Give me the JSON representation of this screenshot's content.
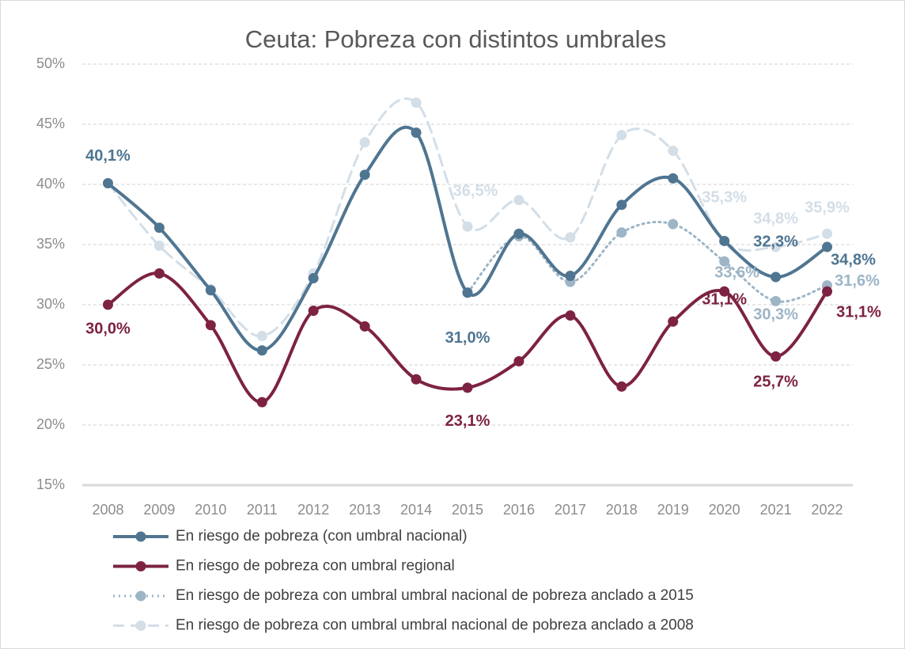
{
  "chart_data": {
    "type": "line",
    "title": "Ceuta: Pobreza con distintos umbrales",
    "categories": [
      "2008",
      "2009",
      "2010",
      "2011",
      "2012",
      "2013",
      "2014",
      "2015",
      "2016",
      "2017",
      "2018",
      "2019",
      "2020",
      "2021",
      "2022"
    ],
    "series": [
      {
        "name": "En riesgo de pobreza (con umbral nacional)",
        "color": "#4f7591",
        "line_style": "solid",
        "values": [
          40.1,
          36.4,
          31.2,
          26.2,
          32.2,
          40.8,
          44.3,
          31.0,
          35.9,
          32.4,
          38.3,
          40.5,
          35.3,
          32.3,
          34.8
        ],
        "value_labels": [
          "40,1%",
          null,
          null,
          null,
          null,
          null,
          null,
          "31,0%",
          null,
          null,
          null,
          null,
          null,
          "32,3%",
          "34,8%"
        ]
      },
      {
        "name": "En riesgo de pobreza con umbral regional",
        "color": "#7d2243",
        "line_style": "solid",
        "values": [
          30.0,
          32.6,
          28.3,
          21.9,
          29.5,
          28.2,
          23.8,
          23.1,
          25.3,
          29.1,
          23.2,
          28.6,
          31.1,
          25.7,
          31.1
        ],
        "value_labels": [
          "30,0%",
          null,
          null,
          null,
          null,
          null,
          null,
          "23,1%",
          null,
          null,
          null,
          null,
          "31,1%",
          "25,7%",
          "31,1%"
        ]
      },
      {
        "name": "En riesgo de pobreza con umbral umbral nacional de pobreza anclado a 2015",
        "color": "#9db5c6",
        "line_style": "dotted",
        "values": [
          null,
          null,
          null,
          null,
          null,
          null,
          null,
          31.0,
          35.7,
          31.9,
          36.0,
          36.7,
          33.6,
          30.3,
          31.6
        ],
        "value_labels": [
          null,
          null,
          null,
          null,
          null,
          null,
          null,
          null,
          null,
          null,
          null,
          null,
          "33,6%",
          "30,3%",
          "31,6%"
        ]
      },
      {
        "name": "En riesgo de pobreza con umbral umbral nacional de pobreza anclado a 2008",
        "color": "#d3dee7",
        "line_style": "dashed",
        "values": [
          40.1,
          34.9,
          31.3,
          27.4,
          32.6,
          43.5,
          46.8,
          36.5,
          38.7,
          35.6,
          44.1,
          42.8,
          35.3,
          34.8,
          35.9
        ],
        "value_labels": [
          null,
          null,
          null,
          null,
          null,
          null,
          null,
          "36,5%",
          null,
          null,
          null,
          null,
          "35,3%",
          "34,8%",
          "35,9%"
        ]
      }
    ],
    "ylim": [
      15,
      50
    ],
    "yticks": [
      {
        "value": 15,
        "label": "15%"
      },
      {
        "value": 20,
        "label": "20%"
      },
      {
        "value": 25,
        "label": "25%"
      },
      {
        "value": 30,
        "label": "30%"
      },
      {
        "value": 35,
        "label": "35%"
      },
      {
        "value": 40,
        "label": "40%"
      },
      {
        "value": 45,
        "label": "45%"
      },
      {
        "value": 50,
        "label": "50%"
      }
    ],
    "grid": true,
    "legend": "bottom"
  }
}
